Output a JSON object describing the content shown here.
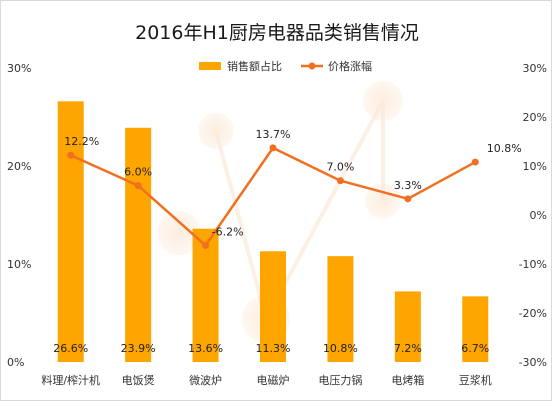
{
  "chart_data": {
    "type": "bar+line",
    "title": "2016年H1厨房电器品类销售情况",
    "categories": [
      "料理/榨汁机",
      "电饭煲",
      "微波炉",
      "电磁炉",
      "电压力锅",
      "电烤箱",
      "豆浆机"
    ],
    "series": [
      {
        "name": "销售额占比",
        "type": "bar",
        "axis": "left",
        "values": [
          26.6,
          23.9,
          13.6,
          11.3,
          10.8,
          7.2,
          6.7
        ],
        "labels": [
          "26.6%",
          "23.9%",
          "13.6%",
          "11.3%",
          "10.8%",
          "7.2%",
          "6.7%"
        ],
        "color": "#FFA500"
      },
      {
        "name": "价格涨幅",
        "type": "line",
        "axis": "right",
        "values": [
          12.2,
          6.0,
          -6.2,
          13.7,
          7.0,
          3.3,
          10.8
        ],
        "labels": [
          "12.2%",
          "6.0%",
          "-6.2%",
          "13.7%",
          "7.0%",
          "3.3%",
          "10.8%"
        ],
        "color": "#F07020"
      }
    ],
    "y_left": {
      "range": [
        0,
        30
      ],
      "ticks": [
        "0%",
        "10%",
        "20%",
        "30%"
      ]
    },
    "y_right": {
      "range": [
        -30,
        30
      ],
      "ticks": [
        "-30%",
        "-20%",
        "-10%",
        "0%",
        "10%",
        "20%",
        "30%"
      ]
    },
    "legend": "top",
    "grid": false
  }
}
